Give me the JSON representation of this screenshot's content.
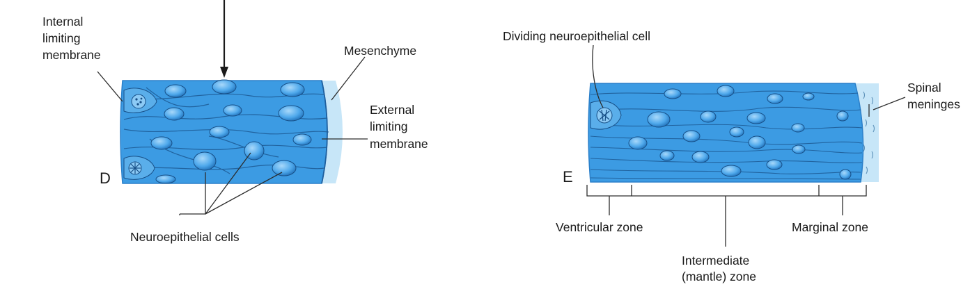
{
  "panel_d": {
    "letter": "D",
    "labels": {
      "internal_line1": "Internal",
      "internal_line2": "limiting",
      "internal_line3": "membrane",
      "mesenchyme": "Mesenchyme",
      "external_line1": "External",
      "external_line2": "limiting",
      "external_line3": "membrane",
      "neuroepithelial": "Neuroepithelial cells"
    }
  },
  "panel_e": {
    "letter": "E",
    "labels": {
      "dividing": "Dividing neuroepithelial cell",
      "spinal_line1": "Spinal",
      "spinal_line2": "meninges",
      "ventricular": "Ventricular zone",
      "marginal": "Marginal zone",
      "intermediate_line1": "Intermediate",
      "intermediate_line2": "(mantle) zone"
    }
  },
  "colors": {
    "tissue": "#3c9be3",
    "tissue_dark": "#2a7fc9",
    "nucleus": "#5db3f0",
    "mesenchyme": "#c7e6f8",
    "line": "#2c2c2c"
  }
}
